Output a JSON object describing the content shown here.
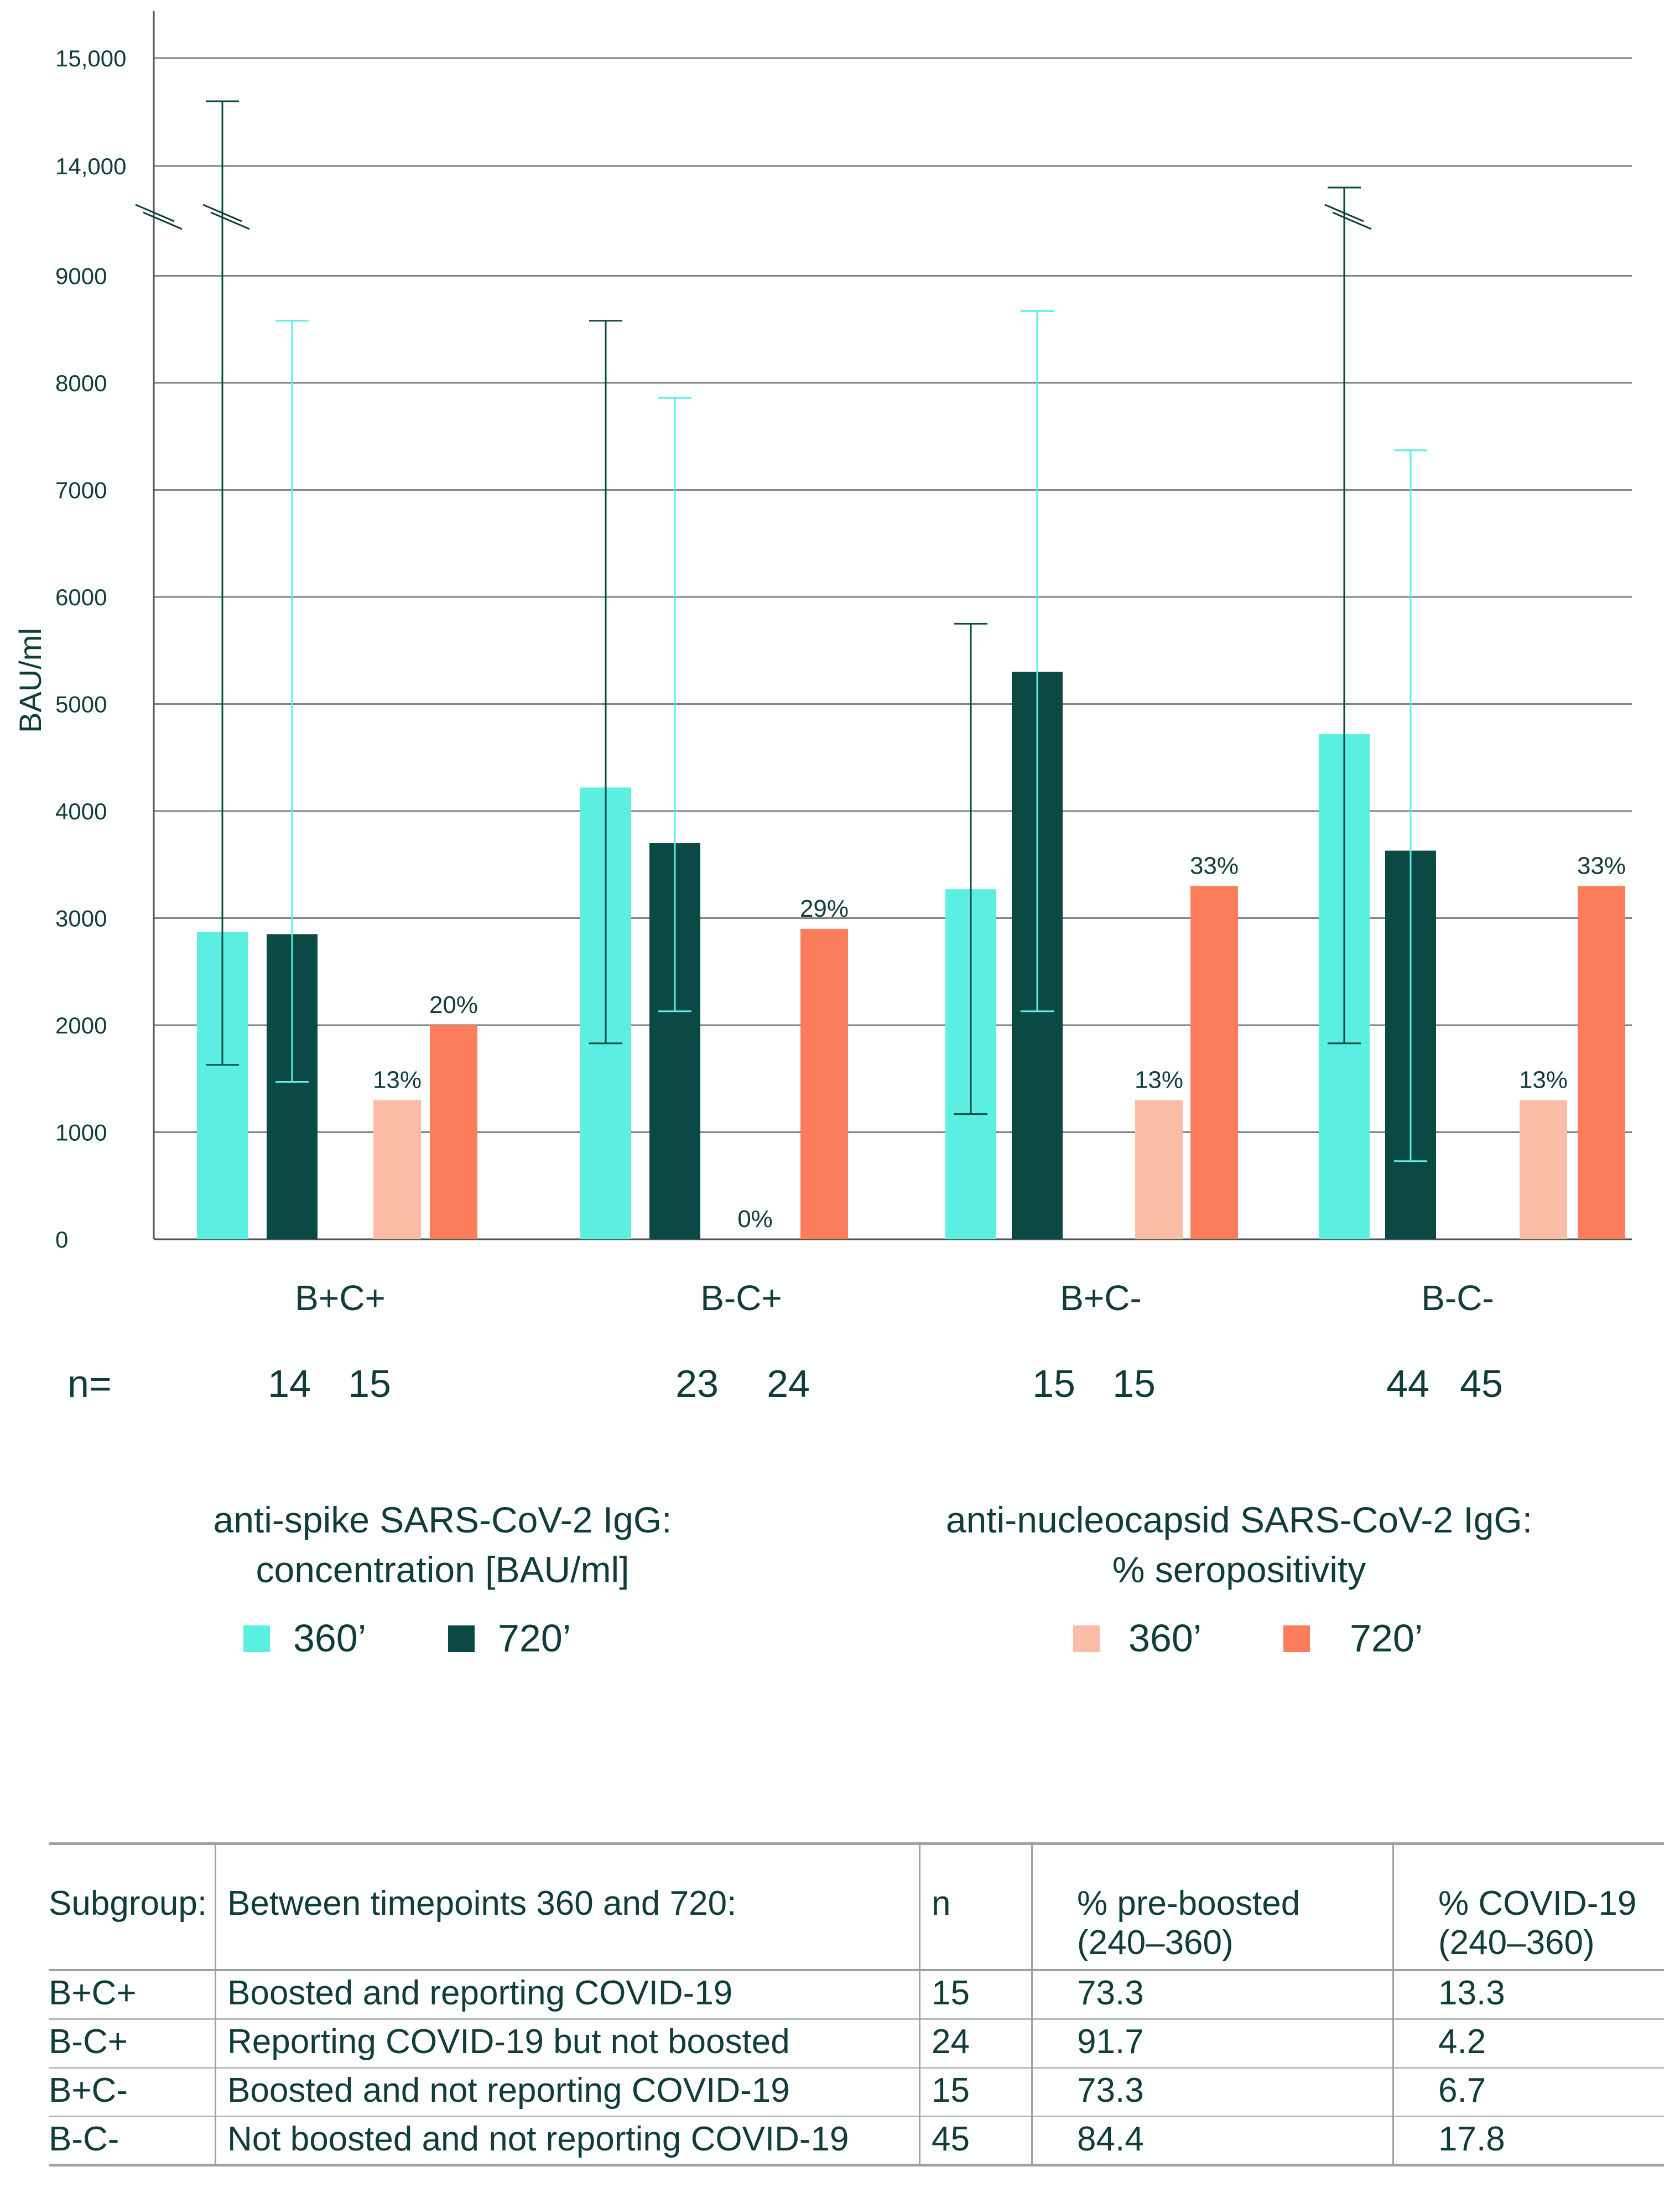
{
  "chart_data": {
    "type": "bar",
    "ylabel": "BAU/ml",
    "ytick_labels": [
      "0",
      "1000",
      "2000",
      "3000",
      "4000",
      "5000",
      "6000",
      "7000",
      "8000",
      "9000",
      "14,000",
      "15,000"
    ],
    "axis_break": "between 9000 and 14,000",
    "categories": [
      "B+C+",
      "B-C+",
      "B+C-",
      "B-C-"
    ],
    "n_label": "n=",
    "n_values": [
      [
        "14",
        "15"
      ],
      [
        "23",
        "24"
      ],
      [
        "15",
        "15"
      ],
      [
        "44",
        "45"
      ]
    ],
    "spike_series": [
      {
        "name": "360’",
        "color": "#5aefe0",
        "values": [
          2870,
          4220,
          3270,
          4720
        ],
        "err_low": [
          1630,
          1830,
          1170,
          1830
        ],
        "err_high": [
          14600,
          8580,
          5750,
          13800
        ]
      },
      {
        "name": "720’",
        "color": "#0b4a44",
        "values": [
          2850,
          3700,
          5300,
          3630
        ],
        "err_low": [
          1470,
          2130,
          2130,
          730
        ],
        "err_high": [
          8580,
          7860,
          8670,
          7370
        ]
      }
    ],
    "nucleocapsid_series": [
      {
        "name": "360’",
        "color": "#fbbca6",
        "values": [
          13,
          0,
          13,
          13
        ],
        "labels": [
          "13%",
          "0%",
          "13%",
          "13%"
        ]
      },
      {
        "name": "720’",
        "color": "#fb7d5b",
        "values": [
          20,
          29,
          33,
          33
        ],
        "labels": [
          "20%",
          "29%",
          "33%",
          "33%"
        ]
      }
    ],
    "pct_scale_note": "percent bars drawn so that 10% equals 1000 BAU/ml on the axis"
  },
  "legend": {
    "spike_title_line1": "anti-spike SARS-CoV-2 IgG:",
    "spike_title_line2": "concentration [BAU/ml]",
    "nucleo_title_line1": "anti-nucleocapsid SARS-CoV-2 IgG:",
    "nucleo_title_line2": "% seropositivity",
    "spike_360": "360’",
    "spike_720": "720’",
    "nucleo_360": "360’",
    "nucleo_720": "720’"
  },
  "table": {
    "headers": {
      "subgroup": "Subgroup:",
      "between": "Between timepoints 360 and 720:",
      "n": "n",
      "preboosted_1": "% pre-boosted",
      "preboosted_2": "(240–360)",
      "covid_1": "% COVID-19",
      "covid_2": "(240–360)"
    },
    "rows": [
      {
        "subgroup": "B+C+",
        "desc": "Boosted and reporting COVID-19",
        "n": "15",
        "pre": "73.3",
        "covid": "13.3"
      },
      {
        "subgroup": "B-C+",
        "desc": "Reporting COVID-19 but not boosted",
        "n": "24",
        "pre": "91.7",
        "covid": "4.2"
      },
      {
        "subgroup": "B+C-",
        "desc": "Boosted and not reporting COVID-19",
        "n": "15",
        "pre": "73.3",
        "covid": "6.7"
      },
      {
        "subgroup": "B-C-",
        "desc": "Not boosted and not reporting COVID-19",
        "n": "45",
        "pre": "84.4",
        "covid": "17.8"
      }
    ]
  }
}
